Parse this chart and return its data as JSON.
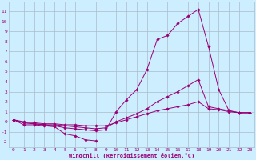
{
  "xlabel": "Windchill (Refroidissement éolien,°C)",
  "background_color": "#cceeff",
  "grid_color": "#aabbcc",
  "line_color": "#990077",
  "xlim": [
    -0.5,
    23.5
  ],
  "ylim": [
    -2.5,
    12.0
  ],
  "xticks": [
    0,
    1,
    2,
    3,
    4,
    5,
    6,
    7,
    8,
    9,
    10,
    11,
    12,
    13,
    14,
    15,
    16,
    17,
    18,
    19,
    20,
    21,
    22,
    23
  ],
  "yticks": [
    -2,
    -1,
    0,
    1,
    2,
    3,
    4,
    5,
    6,
    7,
    8,
    9,
    10,
    11
  ],
  "series": [
    {
      "x": [
        0,
        1,
        2,
        3,
        4,
        5,
        6,
        7,
        8
      ],
      "y": [
        0.2,
        -0.3,
        -0.3,
        -0.4,
        -0.5,
        -1.2,
        -1.4,
        -1.8,
        -1.9
      ]
    },
    {
      "x": [
        0,
        1,
        2,
        3,
        4,
        5,
        6,
        7,
        8,
        9,
        10,
        11,
        12,
        13,
        14,
        15,
        16,
        17,
        18,
        19,
        20,
        21,
        22,
        23
      ],
      "y": [
        0.2,
        0.0,
        -0.1,
        -0.2,
        -0.2,
        -0.3,
        -0.3,
        -0.4,
        -0.4,
        -0.4,
        -0.1,
        0.2,
        0.5,
        0.8,
        1.1,
        1.3,
        1.5,
        1.7,
        2.0,
        1.3,
        1.2,
        1.0,
        0.9,
        0.9
      ]
    },
    {
      "x": [
        0,
        1,
        2,
        3,
        4,
        5,
        6,
        7,
        8,
        9,
        10,
        11,
        12,
        13,
        14,
        15,
        16,
        17,
        18,
        19,
        20,
        21,
        22,
        23
      ],
      "y": [
        0.2,
        -0.1,
        -0.2,
        -0.3,
        -0.4,
        -0.6,
        -0.7,
        -0.8,
        -0.9,
        -0.8,
        1.0,
        2.2,
        3.2,
        5.2,
        8.2,
        8.6,
        9.8,
        10.5,
        11.2,
        7.5,
        3.2,
        1.1,
        0.9,
        0.9
      ]
    },
    {
      "x": [
        0,
        1,
        2,
        3,
        4,
        5,
        6,
        7,
        8,
        9,
        10,
        11,
        12,
        13,
        14,
        15,
        16,
        17,
        18,
        19,
        20,
        21,
        22,
        23
      ],
      "y": [
        0.2,
        -0.1,
        -0.2,
        -0.3,
        -0.3,
        -0.4,
        -0.5,
        -0.6,
        -0.7,
        -0.6,
        0.0,
        0.4,
        0.8,
        1.3,
        2.0,
        2.5,
        3.0,
        3.6,
        4.2,
        1.5,
        1.3,
        1.1,
        0.9,
        0.9
      ]
    }
  ]
}
